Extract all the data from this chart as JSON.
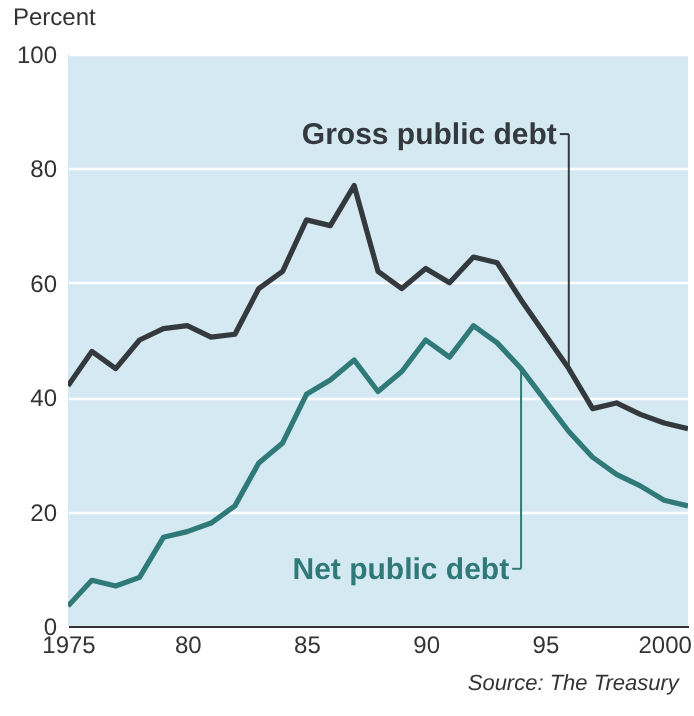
{
  "chart_data": {
    "type": "line",
    "ylabel": "Percent",
    "x": [
      1975,
      1976,
      1977,
      1978,
      1979,
      1980,
      1981,
      1982,
      1983,
      1984,
      1985,
      1986,
      1987,
      1988,
      1989,
      1990,
      1991,
      1992,
      1993,
      1994,
      1995,
      1996,
      1997,
      1998,
      1999,
      2000,
      2001
    ],
    "series": [
      {
        "name": "Gross public debt",
        "color": "#33393d",
        "values": [
          42,
          48,
          45,
          50,
          52,
          52.5,
          50.5,
          51,
          59,
          62,
          71,
          70,
          77,
          62,
          59,
          62.5,
          60,
          64.5,
          63.5,
          57,
          51,
          45,
          38,
          39,
          37,
          35.5,
          34.5
        ]
      },
      {
        "name": "Net public debt",
        "color": "#2f7a78",
        "values": [
          3.5,
          8,
          7,
          8.5,
          15.5,
          16.5,
          18,
          21,
          28.5,
          32,
          40.5,
          43,
          46.5,
          41,
          44.5,
          50,
          47,
          52.5,
          49.5,
          45,
          39.5,
          34,
          29.5,
          26.5,
          24.5,
          22,
          21
        ]
      }
    ],
    "xlim": [
      1975,
      2001
    ],
    "ylim": [
      0,
      100
    ],
    "yticks": [
      0,
      20,
      40,
      60,
      80,
      100
    ],
    "xticks": [
      1975,
      {
        "value": 1980,
        "label": "80"
      },
      {
        "value": 1985,
        "label": "85"
      },
      {
        "value": 1990,
        "label": "90"
      },
      {
        "value": 1995,
        "label": "95"
      },
      2000
    ],
    "grid": "y",
    "legend": "right",
    "marker": "none",
    "line_style": "solid",
    "annotations": [
      "Source: The Treasury"
    ]
  }
}
